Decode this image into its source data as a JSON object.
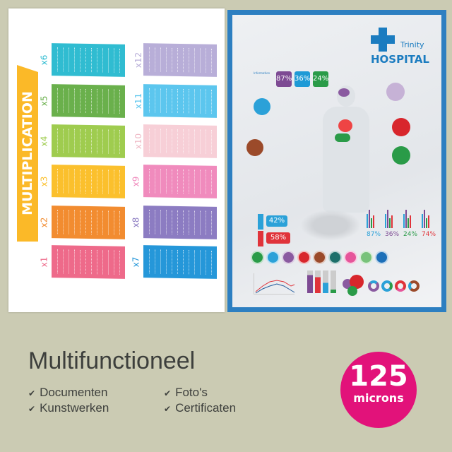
{
  "multiplication_poster": {
    "title": "MULTIPLICATION",
    "tables": [
      {
        "label": "x1",
        "color": "#ee6a8a"
      },
      {
        "label": "x2",
        "color": "#f28c30"
      },
      {
        "label": "x3",
        "color": "#fbc02d"
      },
      {
        "label": "x4",
        "color": "#9fcc4f"
      },
      {
        "label": "x5",
        "color": "#6ab04c"
      },
      {
        "label": "x6",
        "color": "#30bcd1"
      },
      {
        "label": "x7",
        "color": "#2597d9"
      },
      {
        "label": "x8",
        "color": "#8c7cc2"
      },
      {
        "label": "x9",
        "color": "#f08bbd"
      },
      {
        "label": "x10",
        "color": "#f7cfd7"
      },
      {
        "label": "x11",
        "color": "#5cc6ee"
      },
      {
        "label": "x12",
        "color": "#b8aed8"
      }
    ]
  },
  "hospital_poster": {
    "name_small": "Trinity",
    "name_large": "HOSPITAL",
    "info_heading": "Information",
    "top_percentages": [
      {
        "v": "87%",
        "c": "#7d4a93"
      },
      {
        "v": "36%",
        "c": "#1e9ad6"
      },
      {
        "v": "24%",
        "c": "#2a9b48"
      }
    ],
    "male_pct": "42%",
    "female_pct": "58%",
    "bar_percentages": [
      {
        "v": "87%",
        "c": "#2ba1d8"
      },
      {
        "v": "36%",
        "c": "#7d4a93"
      },
      {
        "v": "24%",
        "c": "#2a9b48"
      },
      {
        "v": "74%",
        "c": "#e0333a"
      }
    ],
    "icons": [
      {
        "name": "stomach-icon",
        "c": "#2a9b48"
      },
      {
        "name": "lungs-icon",
        "c": "#2ba1d8"
      },
      {
        "name": "brain-icon",
        "c": "#8a5aa0"
      },
      {
        "name": "heart-organ-icon",
        "c": "#d8262c"
      },
      {
        "name": "liver-icon",
        "c": "#9b4a2a"
      },
      {
        "name": "tooth-icon",
        "c": "#1c6f6a"
      },
      {
        "name": "heart-icon",
        "c": "#e6559a"
      },
      {
        "name": "sleep-icon",
        "c": "#78c27a"
      },
      {
        "name": "apple-icon",
        "c": "#1c6fb8"
      }
    ]
  },
  "footer": {
    "title": "Multifunctioneel",
    "check_icon": "checkmark-icon",
    "features": [
      "Documenten",
      "Kunstwerken",
      "Foto's",
      "Certificaten"
    ],
    "badge": {
      "value": "125",
      "unit": "microns",
      "color": "#e2127a"
    }
  }
}
